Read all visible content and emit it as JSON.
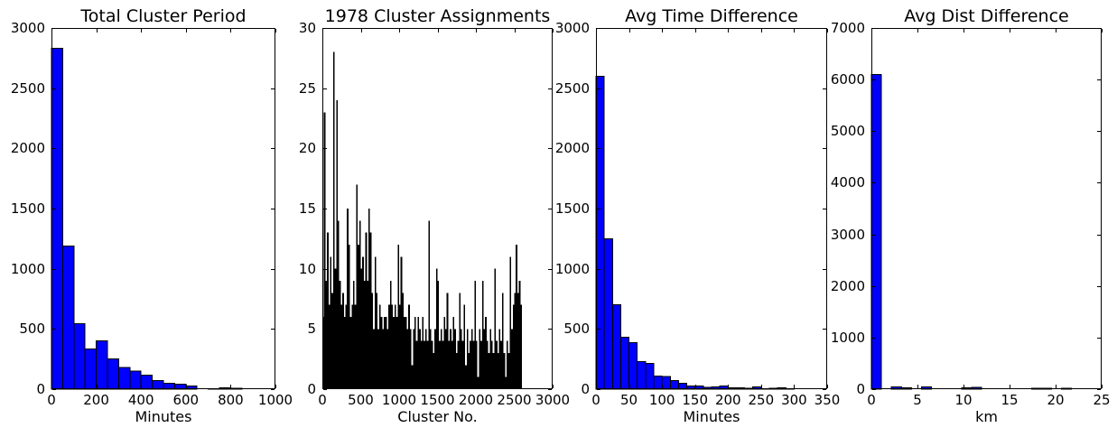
{
  "figure": {
    "background": "#ffffff",
    "axis_color": "#000000",
    "text_color": "#000000",
    "histogram_bar_color": "#0000ff",
    "histogram_bar_edge_color": "#000000",
    "assignments_bar_color": "#000000"
  },
  "chart_data": [
    {
      "type": "bar",
      "title": "Total Cluster Period",
      "xlabel": "Minutes",
      "ylabel": "",
      "bar_color": "#0000ff",
      "bar_edge_color": "#000000",
      "xlim": [
        0,
        1000
      ],
      "ylim": [
        0,
        3000
      ],
      "xticks": [
        0,
        200,
        400,
        600,
        800,
        1000
      ],
      "yticks": [
        0,
        500,
        1000,
        1500,
        2000,
        2500,
        3000
      ],
      "grid": false,
      "legend": null,
      "bin_start": 0,
      "bin_width": 50,
      "values": [
        2830,
        1190,
        545,
        335,
        400,
        250,
        180,
        150,
        115,
        70,
        50,
        42,
        25,
        0,
        5,
        12,
        8,
        0,
        0,
        0
      ]
    },
    {
      "type": "bar",
      "title": "1978 Cluster Assignments",
      "xlabel": "Cluster No.",
      "ylabel": "",
      "bar_color": "#000000",
      "bar_edge_color": null,
      "xlim": [
        0,
        3000
      ],
      "ylim": [
        0,
        30
      ],
      "xticks": [
        0,
        500,
        1000,
        1500,
        2000,
        2500,
        3000
      ],
      "yticks": [
        0,
        5,
        10,
        15,
        20,
        25,
        30
      ],
      "grid": false,
      "legend": null,
      "bin_start": 0,
      "bin_width": 20,
      "values": [
        6,
        23,
        9,
        13,
        7,
        11,
        8,
        28,
        10,
        24,
        14,
        9,
        7,
        8,
        6,
        7,
        15,
        12,
        6,
        7,
        9,
        7,
        17,
        12,
        14,
        10,
        11,
        9,
        13,
        9,
        15,
        13,
        8,
        5,
        11,
        8,
        5,
        7,
        6,
        5,
        6,
        6,
        5,
        7,
        9,
        7,
        6,
        7,
        6,
        12,
        7,
        11,
        8,
        6,
        6,
        5,
        7,
        5,
        2,
        5,
        6,
        4,
        6,
        5,
        4,
        6,
        4,
        5,
        4,
        14,
        5,
        4,
        3,
        5,
        10,
        9,
        4,
        5,
        4,
        6,
        5,
        8,
        4,
        5,
        4,
        6,
        5,
        3,
        4,
        8,
        5,
        4,
        7,
        2,
        5,
        3,
        4,
        5,
        4,
        9,
        4,
        1,
        5,
        4,
        9,
        5,
        6,
        4,
        3,
        5,
        4,
        3,
        10,
        4,
        3,
        5,
        4,
        8,
        3,
        1,
        4,
        3,
        11,
        5,
        7,
        8,
        12,
        8,
        9,
        7
      ]
    },
    {
      "type": "bar",
      "title": "Avg Time Difference",
      "xlabel": "Minutes",
      "ylabel": "",
      "bar_color": "#0000ff",
      "bar_edge_color": "#000000",
      "xlim": [
        0,
        350
      ],
      "ylim": [
        0,
        3000
      ],
      "xticks": [
        0,
        50,
        100,
        150,
        200,
        250,
        300,
        350
      ],
      "yticks": [
        0,
        500,
        1000,
        1500,
        2000,
        2500,
        3000
      ],
      "grid": false,
      "legend": null,
      "bin_start": 0,
      "bin_width": 12.5,
      "values": [
        2600,
        1250,
        700,
        430,
        385,
        230,
        215,
        110,
        105,
        70,
        50,
        25,
        28,
        15,
        20,
        25,
        10,
        12,
        8,
        18,
        3,
        8,
        10,
        2,
        0,
        0,
        0,
        0
      ]
    },
    {
      "type": "bar",
      "title": "Avg Dist Difference",
      "xlabel": "km",
      "ylabel": "",
      "bar_color": "#0000ff",
      "bar_edge_color": "#000000",
      "xlim": [
        0,
        25
      ],
      "ylim": [
        0,
        7000
      ],
      "xticks": [
        0,
        5,
        10,
        15,
        20,
        25
      ],
      "yticks": [
        0,
        1000,
        2000,
        3000,
        4000,
        5000,
        6000,
        7000
      ],
      "grid": false,
      "legend": null,
      "bin_start": 0,
      "bin_width": 1.087,
      "values": [
        6100,
        0,
        40,
        25,
        0,
        45,
        0,
        0,
        0,
        25,
        35,
        0,
        0,
        0,
        0,
        0,
        18,
        18,
        0,
        18,
        0,
        0,
        0
      ]
    }
  ]
}
